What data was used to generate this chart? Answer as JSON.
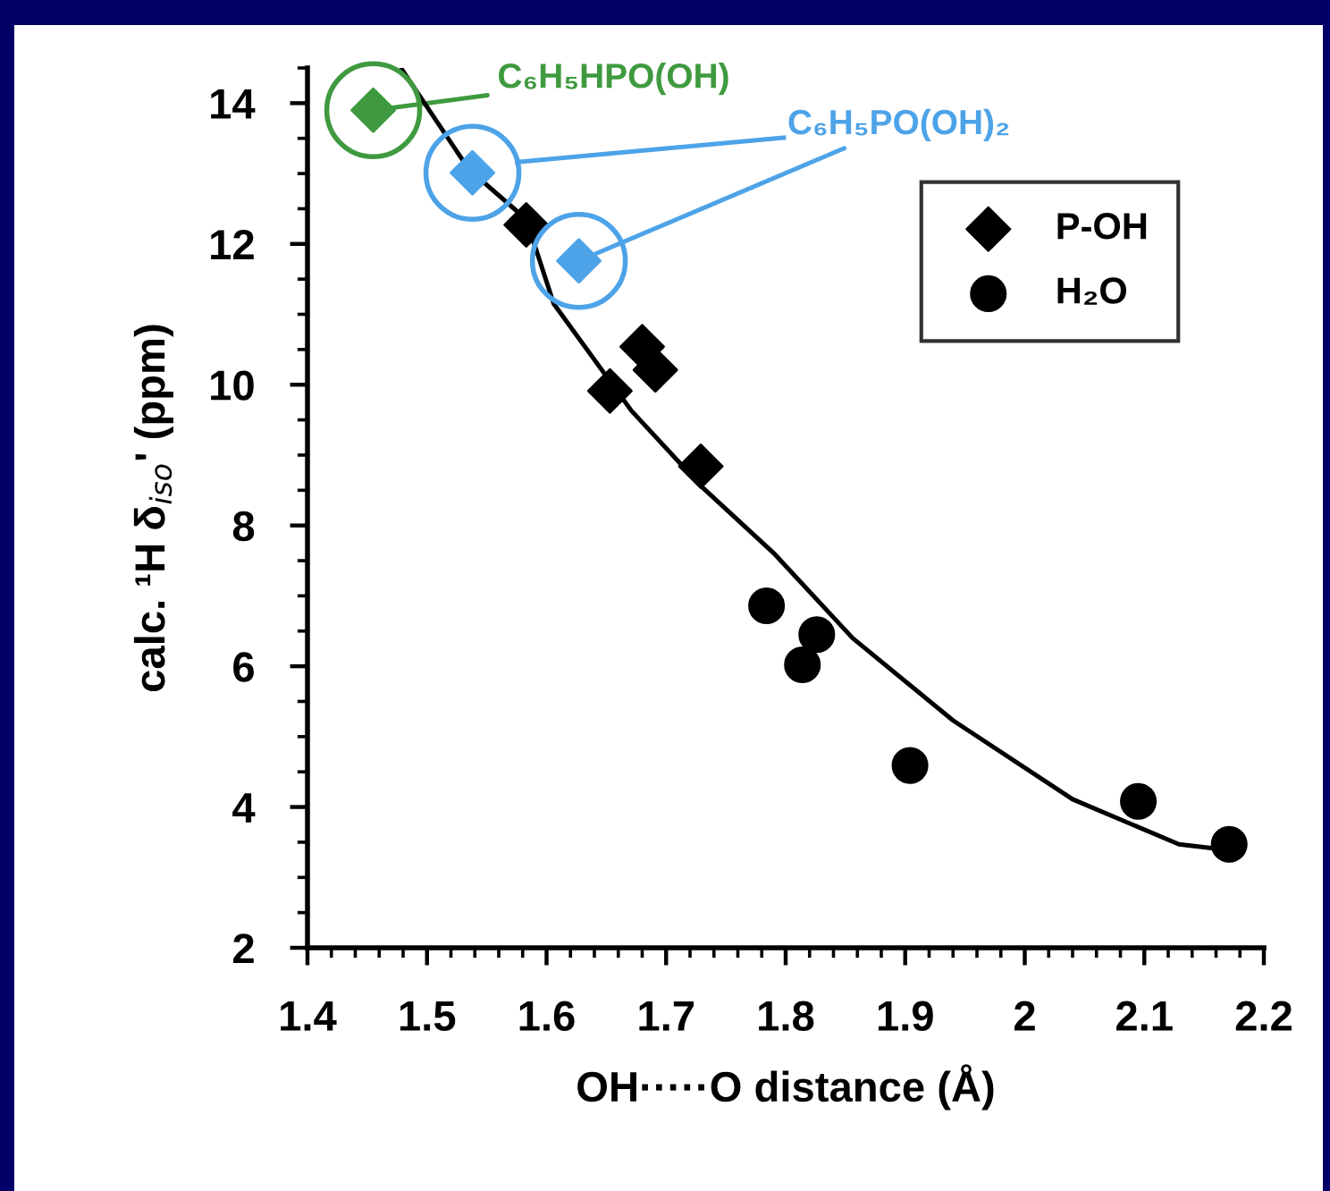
{
  "chart_data": {
    "type": "scatter",
    "xlabel": "OH·····O distance (Å)",
    "ylabel": "calc. ¹H δ$_{iso}$' (ppm)",
    "xlim": [
      1.4,
      2.2
    ],
    "xticks": [
      1.4,
      1.5,
      1.6,
      1.7,
      1.8,
      1.9,
      2,
      2.1,
      2.2
    ],
    "ylim": [
      2,
      14.5
    ],
    "yticks": [
      2,
      4,
      6,
      8,
      10,
      12,
      14
    ],
    "grid": false,
    "legend": "right",
    "series": [
      {
        "name": "P-OH",
        "marker": "diamond",
        "color": "#000000",
        "x": [
          1.583,
          1.653,
          1.68,
          1.691,
          1.729
        ],
        "values": [
          12.27,
          9.91,
          10.54,
          10.21,
          8.84
        ]
      },
      {
        "marker": "diamond",
        "color": "#3f9a3f",
        "x": [
          1.455
        ],
        "values": [
          13.9
        ]
      },
      {
        "marker": "diamond",
        "color": "#4da3e8",
        "x": [
          1.538,
          1.627
        ],
        "values": [
          13.01,
          11.76
        ]
      },
      {
        "name": "H₂O",
        "marker": "circle",
        "color": "#000000",
        "x": [
          1.784,
          1.814,
          1.826,
          1.904,
          2.095,
          2.171
        ],
        "values": [
          6.86,
          6.02,
          6.45,
          4.59,
          4.08,
          3.47
        ]
      },
      {
        "type": "line",
        "marker": "none",
        "line_style": "solid",
        "color": "#000000",
        "x": [
          1.479,
          1.535,
          1.583,
          1.606,
          1.671,
          1.731,
          1.791,
          1.856,
          1.94,
          2.04,
          2.129,
          2.164
        ],
        "values": [
          14.48,
          13.06,
          12.35,
          11.15,
          9.63,
          8.53,
          7.59,
          6.4,
          5.23,
          4.11,
          3.47,
          3.4
        ]
      }
    ],
    "annotations": [
      {
        "text": "C₆H₅HPO(OH)",
        "x": 1.455,
        "y": 13.9
      },
      {
        "text": "C₆H₅PO(OH)₂",
        "x": 1.627,
        "y": 11.76
      }
    ]
  }
}
